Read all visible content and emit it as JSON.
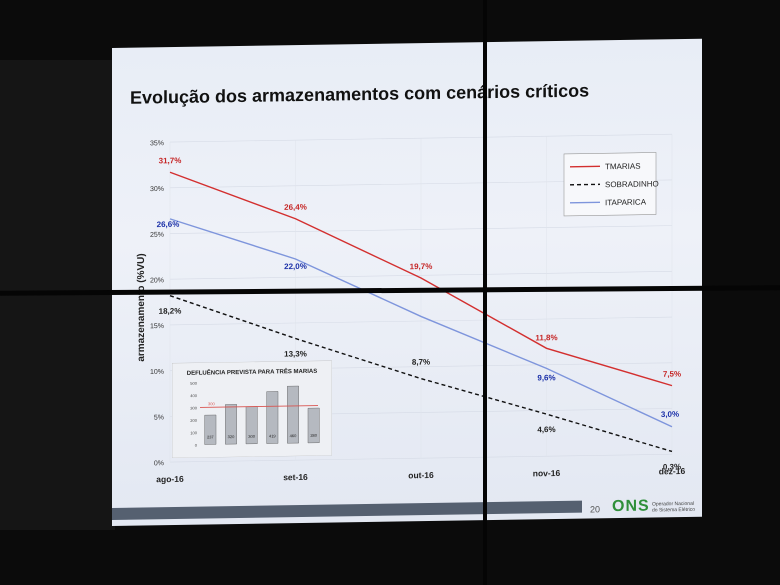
{
  "slide": {
    "title": "Evolução dos armazenamentos com cenários críticos",
    "page_number": "20",
    "logo_text": "ONS",
    "logo_subtitle": "Operador Nacional do Sistema Elétrico"
  },
  "chart_data": [
    {
      "type": "line",
      "ylabel": "armazenamento (%VU)",
      "categories": [
        "ago-16",
        "set-16",
        "out-16",
        "nov-16",
        "dez-16"
      ],
      "ylim": [
        0,
        35
      ],
      "yticks": [
        "0%",
        "5%",
        "10%",
        "15%",
        "20%",
        "25%",
        "30%",
        "35%"
      ],
      "legend_position": "top-right",
      "series": [
        {
          "name": "TMARIAS",
          "color": "#d32f2f",
          "style": "solid",
          "values": [
            31.7,
            26.4,
            19.7,
            11.8,
            7.5
          ],
          "labels": [
            "31,7%",
            "26,4%",
            "19,7%",
            "11,8%",
            "7,5%"
          ],
          "label_color": "#c62828"
        },
        {
          "name": "SOBRADINHO",
          "color": "#111111",
          "style": "dashed",
          "values": [
            18.2,
            13.3,
            8.7,
            4.6,
            0.3
          ],
          "labels": [
            "18,2%",
            "13,3%",
            "8,7%",
            "4,6%",
            "0,3%"
          ],
          "label_color": "#222222"
        },
        {
          "name": "ITAPARICA",
          "color": "#7e95dc",
          "style": "solid",
          "values": [
            26.6,
            22.0,
            15.5,
            9.6,
            3.0
          ],
          "labels": [
            "26,6%",
            "22,0%",
            "",
            "9,6%",
            "3,0%"
          ],
          "label_color": "#1a2fa8"
        }
      ]
    },
    {
      "type": "bar",
      "title": "DEFLUÊNCIA PREVISTA PARA TRÊS MARIAS",
      "values": [
        237,
        320,
        300,
        419,
        460,
        280
      ],
      "value_labels": [
        "237",
        "320",
        "300",
        "419",
        "460",
        "280"
      ],
      "reference_value": 300,
      "reference_label": "300",
      "ylim": [
        0,
        500
      ],
      "yticks": [
        "0",
        "100",
        "200",
        "300",
        "400",
        "500"
      ],
      "colors": {
        "bar": "#b5b9c0",
        "reference": "#d9534f"
      }
    }
  ]
}
